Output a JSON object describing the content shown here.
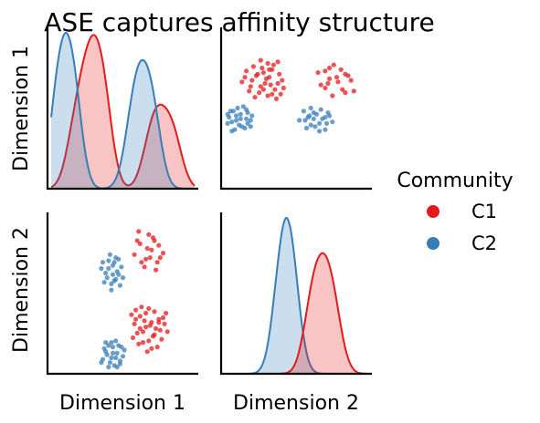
{
  "title": "ASE captures affinity structure",
  "legend": {
    "title": "Community",
    "placement": "right",
    "entries": [
      {
        "label": "C1",
        "color": "#e41a1c"
      },
      {
        "label": "C2",
        "color": "#377eb8"
      }
    ]
  },
  "chart_data": {
    "type": "pairplot",
    "title": "ASE captures affinity structure",
    "variables": [
      "Dimension 1",
      "Dimension 2"
    ],
    "hue": "Community",
    "grid": false,
    "ticks_shown": false,
    "series": [
      {
        "name": "C1",
        "color": "#e41a1c",
        "points": [
          [
            0.62,
            0.35
          ],
          [
            0.66,
            0.28
          ],
          [
            0.71,
            0.22
          ],
          [
            0.58,
            0.3
          ],
          [
            0.75,
            0.33
          ],
          [
            0.68,
            0.4
          ],
          [
            0.64,
            0.18
          ],
          [
            0.73,
            0.27
          ],
          [
            0.6,
            0.24
          ],
          [
            0.79,
            0.3
          ],
          [
            0.56,
            0.36
          ],
          [
            0.7,
            0.31
          ],
          [
            0.67,
            0.12
          ],
          [
            0.77,
            0.2
          ],
          [
            0.62,
            0.27
          ],
          [
            0.72,
            0.38
          ],
          [
            0.59,
            0.33
          ],
          [
            0.81,
            0.25
          ],
          [
            0.66,
            0.37
          ],
          [
            0.74,
            0.15
          ],
          [
            0.57,
            0.21
          ],
          [
            0.69,
            0.29
          ],
          [
            0.63,
            0.41
          ],
          [
            0.78,
            0.34
          ],
          [
            0.61,
            0.17
          ],
          [
            0.76,
            0.26
          ],
          [
            0.65,
            0.32
          ],
          [
            0.72,
            0.23
          ],
          [
            0.68,
            0.19
          ],
          [
            0.8,
            0.37
          ],
          [
            0.59,
            0.39
          ],
          [
            0.7,
            0.14
          ],
          [
            0.64,
            0.25
          ],
          [
            0.75,
            0.31
          ],
          [
            0.66,
            0.72
          ],
          [
            0.7,
            0.78
          ],
          [
            0.62,
            0.82
          ],
          [
            0.74,
            0.7
          ],
          [
            0.68,
            0.88
          ],
          [
            0.58,
            0.75
          ],
          [
            0.72,
            0.84
          ],
          [
            0.65,
            0.67
          ],
          [
            0.78,
            0.76
          ],
          [
            0.61,
            0.9
          ],
          [
            0.69,
            0.73
          ],
          [
            0.75,
            0.81
          ],
          [
            0.63,
            0.7
          ],
          [
            0.71,
            0.86
          ],
          [
            0.67,
            0.79
          ],
          [
            0.73,
            0.65
          ],
          [
            0.6,
            0.84
          ],
          [
            0.76,
            0.73
          ]
        ]
      },
      {
        "name": "C2",
        "color": "#377eb8",
        "points": [
          [
            0.41,
            0.05
          ],
          [
            0.45,
            0.08
          ],
          [
            0.38,
            0.12
          ],
          [
            0.48,
            0.04
          ],
          [
            0.43,
            0.15
          ],
          [
            0.36,
            0.07
          ],
          [
            0.46,
            0.11
          ],
          [
            0.4,
            0.02
          ],
          [
            0.5,
            0.09
          ],
          [
            0.42,
            0.18
          ],
          [
            0.37,
            0.14
          ],
          [
            0.47,
            0.16
          ],
          [
            0.44,
            0.03
          ],
          [
            0.39,
            0.1
          ],
          [
            0.51,
            0.13
          ],
          [
            0.35,
            0.05
          ],
          [
            0.45,
            0.19
          ],
          [
            0.42,
            0.08
          ],
          [
            0.48,
            0.06
          ],
          [
            0.4,
            0.16
          ],
          [
            0.43,
            0.11
          ],
          [
            0.46,
            0.02
          ],
          [
            0.38,
            0.18
          ],
          [
            0.49,
            0.15
          ],
          [
            0.44,
            0.58
          ],
          [
            0.4,
            0.66
          ],
          [
            0.47,
            0.62
          ],
          [
            0.36,
            0.7
          ],
          [
            0.42,
            0.52
          ],
          [
            0.45,
            0.73
          ],
          [
            0.39,
            0.6
          ],
          [
            0.48,
            0.55
          ],
          [
            0.43,
            0.68
          ],
          [
            0.37,
            0.57
          ],
          [
            0.46,
            0.64
          ],
          [
            0.41,
            0.75
          ],
          [
            0.5,
            0.6
          ],
          [
            0.38,
            0.63
          ],
          [
            0.44,
            0.7
          ],
          [
            0.42,
            0.56
          ],
          [
            0.47,
            0.72
          ],
          [
            0.35,
            0.66
          ],
          [
            0.45,
            0.59
          ],
          [
            0.4,
            0.71
          ],
          [
            0.49,
            0.67
          ],
          [
            0.43,
            0.62
          ]
        ]
      }
    ]
  }
}
